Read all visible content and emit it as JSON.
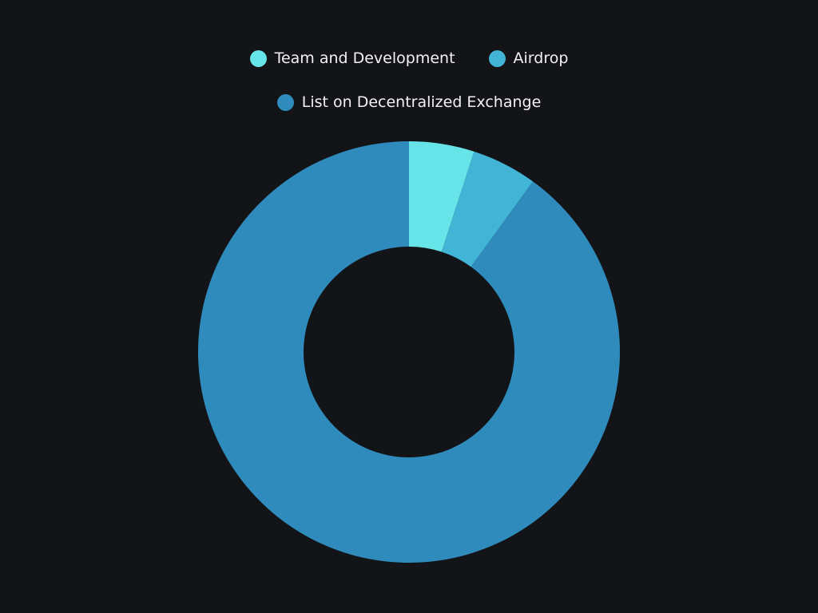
{
  "chart_data": {
    "type": "donut",
    "categories": [
      "Team and Development",
      "Airdrop",
      "List on Decentralized Exchange"
    ],
    "values": [
      5,
      5,
      90
    ],
    "colors": [
      "#67e4e8",
      "#42b5d6",
      "#2e8bbb"
    ],
    "legend": "top"
  }
}
